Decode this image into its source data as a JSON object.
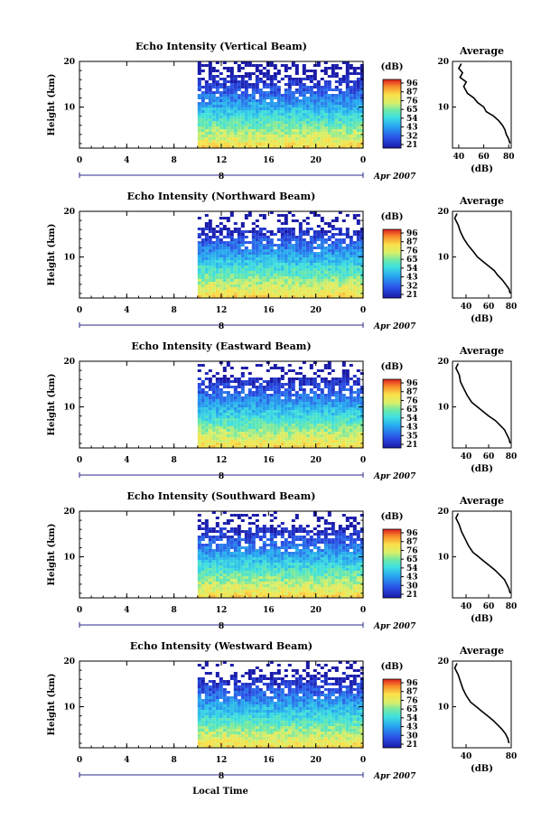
{
  "figure": {
    "xlabel": "Local Time",
    "ylabel": "Height (km)",
    "date_label": "Apr 2007",
    "colorbar_unit": "(dB)",
    "avg_title": "Average",
    "avg_xlabel": "(dB)",
    "colors": {
      "axis": "#000000",
      "date_line": "#2a2a8a"
    }
  },
  "chart_data": [
    {
      "type": "heatmap",
      "title": "Echo Intensity (Vertical Beam)",
      "x_ticks": [
        "0",
        "4",
        "8",
        "12",
        "16",
        "20",
        "0"
      ],
      "x_range": [
        0,
        24
      ],
      "data_start_hour": 10,
      "y_ticks": [
        "10",
        "20"
      ],
      "y_range": [
        1,
        20
      ],
      "date_axis_label": "8",
      "colorbar_ticks": [
        "96",
        "87",
        "76",
        "65",
        "54",
        "43",
        "32",
        "21"
      ],
      "average": {
        "x_ticks": [
          "40",
          "60",
          "80"
        ],
        "x_range": [
          35,
          82
        ],
        "points": [
          [
            42,
            19.5
          ],
          [
            40,
            18.5
          ],
          [
            43,
            17.5
          ],
          [
            41,
            16.5
          ],
          [
            46,
            15.5
          ],
          [
            44,
            14.5
          ],
          [
            47,
            13
          ],
          [
            52,
            12
          ],
          [
            55,
            11
          ],
          [
            60,
            10
          ],
          [
            62,
            9
          ],
          [
            68,
            8
          ],
          [
            72,
            7
          ],
          [
            75,
            6
          ],
          [
            77,
            5
          ],
          [
            78,
            4
          ],
          [
            80,
            3
          ],
          [
            81,
            2
          ]
        ]
      }
    },
    {
      "type": "heatmap",
      "title": "Echo Intensity (Northward Beam)",
      "x_ticks": [
        "0",
        "4",
        "8",
        "12",
        "16",
        "20",
        "0"
      ],
      "x_range": [
        0,
        24
      ],
      "data_start_hour": 10,
      "y_ticks": [
        "10",
        "20"
      ],
      "y_range": [
        1,
        20
      ],
      "date_axis_label": "8",
      "colorbar_ticks": [
        "96",
        "87",
        "76",
        "65",
        "54",
        "43",
        "32",
        "21"
      ],
      "average": {
        "x_ticks": [
          "40",
          "60",
          "80"
        ],
        "x_range": [
          28,
          80
        ],
        "points": [
          [
            32,
            19.5
          ],
          [
            30,
            18.5
          ],
          [
            33,
            17
          ],
          [
            35,
            15.5
          ],
          [
            38,
            14
          ],
          [
            42,
            12.5
          ],
          [
            47,
            11
          ],
          [
            50,
            10
          ],
          [
            55,
            9
          ],
          [
            60,
            8
          ],
          [
            65,
            7
          ],
          [
            68,
            6
          ],
          [
            72,
            5
          ],
          [
            75,
            4
          ],
          [
            78,
            3
          ],
          [
            79,
            2
          ]
        ]
      }
    },
    {
      "type": "heatmap",
      "title": "Echo Intensity (Eastward Beam)",
      "x_ticks": [
        "0",
        "4",
        "8",
        "12",
        "16",
        "20",
        "0"
      ],
      "x_range": [
        0,
        24
      ],
      "data_start_hour": 10,
      "y_ticks": [
        "10",
        "20"
      ],
      "y_range": [
        1,
        20
      ],
      "date_axis_label": "8",
      "colorbar_ticks": [
        "96",
        "87",
        "76",
        "65",
        "54",
        "43",
        "35",
        "21"
      ],
      "average": {
        "x_ticks": [
          "40",
          "60",
          "80"
        ],
        "x_range": [
          28,
          80
        ],
        "points": [
          [
            33,
            19.5
          ],
          [
            31,
            18.5
          ],
          [
            34,
            17
          ],
          [
            35,
            15.5
          ],
          [
            38,
            14
          ],
          [
            41,
            12.5
          ],
          [
            45,
            11
          ],
          [
            50,
            10
          ],
          [
            55,
            9
          ],
          [
            60,
            8
          ],
          [
            66,
            7
          ],
          [
            70,
            6
          ],
          [
            74,
            5
          ],
          [
            76,
            4
          ],
          [
            78,
            3
          ],
          [
            79,
            2
          ]
        ]
      }
    },
    {
      "type": "heatmap",
      "title": "Echo Intensity (Southward Beam)",
      "x_ticks": [
        "0",
        "4",
        "8",
        "12",
        "16",
        "20",
        "0"
      ],
      "x_range": [
        0,
        24
      ],
      "data_start_hour": 10,
      "y_ticks": [
        "10",
        "20"
      ],
      "y_range": [
        1,
        20
      ],
      "date_axis_label": "8",
      "colorbar_ticks": [
        "96",
        "87",
        "76",
        "65",
        "54",
        "43",
        "30",
        "21"
      ],
      "average": {
        "x_ticks": [
          "40",
          "60",
          "80"
        ],
        "x_range": [
          28,
          80
        ],
        "points": [
          [
            33,
            19.5
          ],
          [
            31,
            18.5
          ],
          [
            34,
            17
          ],
          [
            36,
            15.5
          ],
          [
            39,
            14
          ],
          [
            42,
            12.5
          ],
          [
            46,
            11
          ],
          [
            51,
            10
          ],
          [
            56,
            9
          ],
          [
            61,
            8
          ],
          [
            66,
            7
          ],
          [
            70,
            6
          ],
          [
            74,
            5
          ],
          [
            76,
            4
          ],
          [
            78,
            3
          ],
          [
            79,
            2
          ]
        ]
      }
    },
    {
      "type": "heatmap",
      "title": "Echo Intensity (Westward Beam)",
      "x_ticks": [
        "0",
        "4",
        "8",
        "12",
        "16",
        "20",
        "0"
      ],
      "x_range": [
        0,
        24
      ],
      "data_start_hour": 10,
      "y_ticks": [
        "10",
        "20"
      ],
      "y_range": [
        1,
        20
      ],
      "date_axis_label": "8",
      "colorbar_ticks": [
        "96",
        "87",
        "76",
        "65",
        "54",
        "43",
        "30",
        "21"
      ],
      "average": {
        "x_ticks": [
          "40",
          "80"
        ],
        "x_range": [
          28,
          80
        ],
        "points": [
          [
            32,
            19.5
          ],
          [
            30,
            18.5
          ],
          [
            33,
            17
          ],
          [
            35,
            15.5
          ],
          [
            37,
            14
          ],
          [
            40,
            12.5
          ],
          [
            44,
            11
          ],
          [
            49,
            10
          ],
          [
            54,
            9
          ],
          [
            59,
            8
          ],
          [
            64,
            7
          ],
          [
            68,
            6
          ],
          [
            72,
            5
          ],
          [
            75,
            4
          ],
          [
            77,
            3
          ],
          [
            78,
            2
          ]
        ]
      }
    }
  ]
}
